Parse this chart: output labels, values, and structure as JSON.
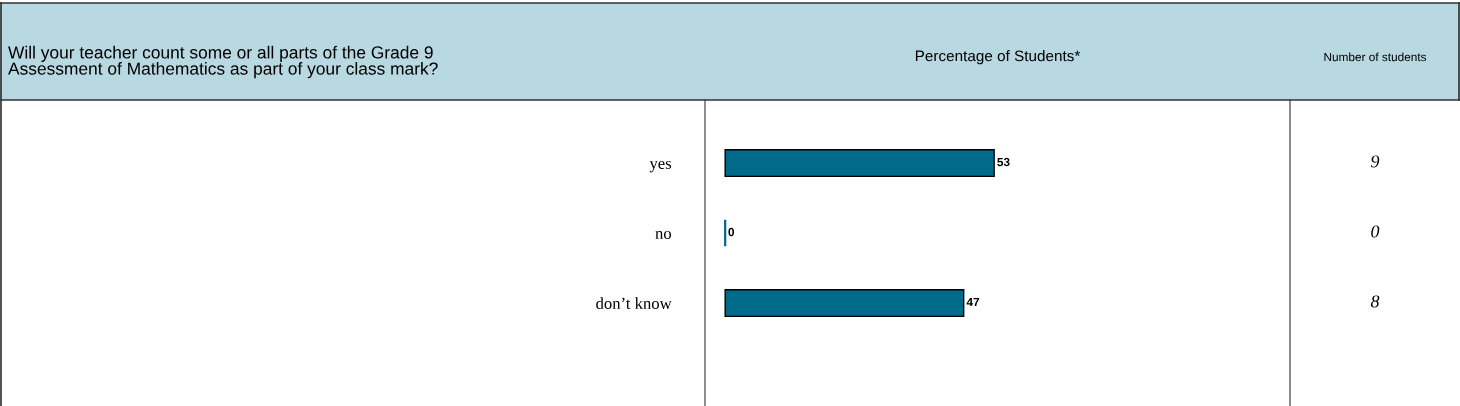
{
  "chart_data": {
    "type": "bar",
    "orientation": "horizontal",
    "title": "Will your teacher count some or all parts of the Grade 9\nAssessment of Mathematics as part of your class mark?",
    "xlabel": "Percentage of Students*",
    "categories": [
      "yes",
      "no",
      "don’t know"
    ],
    "values": [
      53,
      0,
      47
    ],
    "color": "#006a8a",
    "data_labels": true,
    "grid": false,
    "annotations": [
      "Number of students",
      "9",
      "0",
      "8"
    ]
  }
}
